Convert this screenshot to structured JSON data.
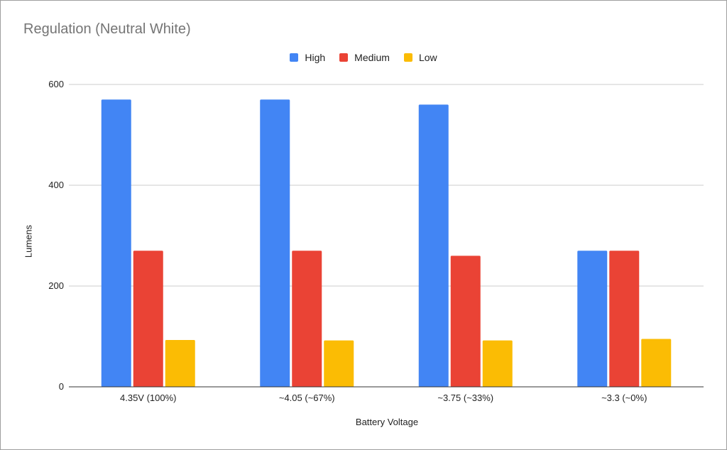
{
  "chart_data": {
    "type": "bar",
    "title": "Regulation (Neutral White)",
    "xlabel": "Battery Voltage",
    "ylabel": "Lumens",
    "categories": [
      "4.35V (100%)",
      "~4.05 (~67%)",
      "~3.75 (~33%)",
      "~3.3 (~0%)"
    ],
    "series": [
      {
        "name": "High",
        "color": "#4285F4",
        "values": [
          570,
          570,
          560,
          270
        ]
      },
      {
        "name": "Medium",
        "color": "#EA4335",
        "values": [
          270,
          270,
          260,
          270
        ]
      },
      {
        "name": "Low",
        "color": "#FBBC04",
        "values": [
          93,
          92,
          92,
          95
        ]
      }
    ],
    "ylim": [
      0,
      600
    ],
    "yticks": [
      "0",
      "200",
      "400",
      "600"
    ],
    "grid": true,
    "legend_position": "top-center"
  }
}
